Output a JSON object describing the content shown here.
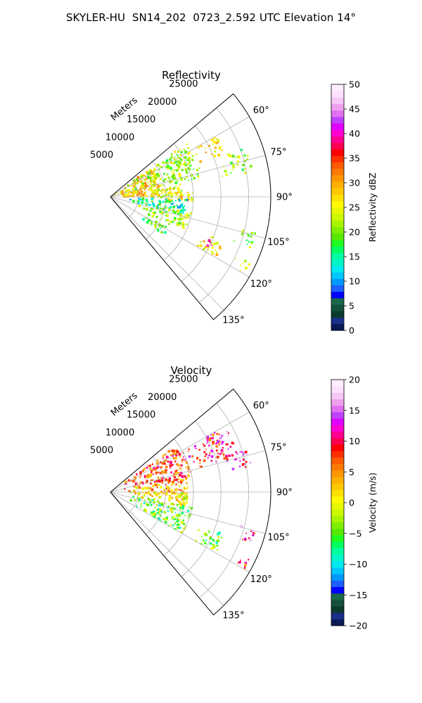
{
  "figure": {
    "title": "SKYLER-HU  SN14_202  0723_2.592 UTC Elevation 14°"
  },
  "chart_data": [
    {
      "type": "heatmap",
      "title": "Reflectivity",
      "radial_axis_label": "Meters",
      "radial_ticks": [
        5000,
        10000,
        15000,
        20000,
        25000
      ],
      "radial_tick_labels": [
        "5000",
        "10000",
        "15000",
        "20000",
        "25000"
      ],
      "range_max_m": 29000,
      "azimuth_range_deg": [
        50,
        140
      ],
      "azimuth_ticks_deg": [
        60,
        75,
        90,
        105,
        120,
        135
      ],
      "azimuth_tick_labels": [
        "60°",
        "75°",
        "90°",
        "105°",
        "120°",
        "135°"
      ],
      "grid": true,
      "colorbar": {
        "label": "Reflectivity dBZ",
        "range": [
          0,
          50
        ],
        "ticks": [
          0,
          5,
          10,
          15,
          20,
          25,
          30,
          35,
          40,
          45,
          50
        ],
        "tick_labels": [
          "0",
          "5",
          "10",
          "15",
          "20",
          "25",
          "30",
          "35",
          "40",
          "45",
          "50"
        ],
        "colors": [
          "#0b1a55",
          "#1a2e8a",
          "#0a3a2c",
          "#14503c",
          "#1a6a4a",
          "#0000ff",
          "#1e60ff",
          "#0099ff",
          "#00c8ff",
          "#00eaf0",
          "#00f5c8",
          "#00ffa0",
          "#00ff60",
          "#20ff20",
          "#58e800",
          "#7fee00",
          "#a8f500",
          "#ccf800",
          "#e8f800",
          "#fffa00",
          "#ffe000",
          "#ffc800",
          "#ffb000",
          "#ff9600",
          "#ff7a00",
          "#ff5a00",
          "#ff3000",
          "#ff0000",
          "#ff0050",
          "#ff0090",
          "#ff00d0",
          "#e000ff",
          "#c040ff",
          "#e070f0",
          "#f0a0f0",
          "#f8c8f8",
          "#fde0fd",
          "#ffeeff"
        ]
      },
      "echoes": [
        {
          "az": [
            55,
            90
          ],
          "r": [
            0,
            9000
          ],
          "value": 28
        },
        {
          "az": [
            55,
            78
          ],
          "r": [
            3000,
            17000
          ],
          "value": 22
        },
        {
          "az": [
            60,
            70
          ],
          "r": [
            17000,
            22000
          ],
          "value": 26
        },
        {
          "az": [
            70,
            80
          ],
          "r": [
            20000,
            26000
          ],
          "value": 22
        },
        {
          "az": [
            80,
            92
          ],
          "r": [
            6000,
            13000
          ],
          "value": 24
        },
        {
          "az": [
            86,
            94
          ],
          "r": [
            9000,
            15000
          ],
          "value": 27
        },
        {
          "az": [
            92,
            104
          ],
          "r": [
            2000,
            14000
          ],
          "value": 14
        },
        {
          "az": [
            100,
            115
          ],
          "r": [
            5000,
            15000
          ],
          "value": 22
        },
        {
          "az": [
            110,
            120
          ],
          "r": [
            17000,
            22000
          ],
          "value": 26
        },
        {
          "az": [
            113,
            117
          ],
          "r": [
            18500,
            20500
          ],
          "value": 38
        },
        {
          "az": [
            103,
            110
          ],
          "r": [
            23000,
            27000
          ],
          "value": 20
        },
        {
          "az": [
            115,
            120
          ],
          "r": [
            25000,
            28000
          ],
          "value": 24
        },
        {
          "az": [
            118,
            126
          ],
          "r": [
            6000,
            12000
          ],
          "value": 20
        }
      ]
    },
    {
      "type": "heatmap",
      "title": "Velocity",
      "radial_axis_label": "Meters",
      "radial_ticks": [
        5000,
        10000,
        15000,
        20000,
        25000
      ],
      "radial_tick_labels": [
        "5000",
        "10000",
        "15000",
        "20000",
        "25000"
      ],
      "range_max_m": 29000,
      "azimuth_range_deg": [
        50,
        140
      ],
      "azimuth_ticks_deg": [
        60,
        75,
        90,
        105,
        120,
        135
      ],
      "azimuth_tick_labels": [
        "60°",
        "75°",
        "90°",
        "105°",
        "120°",
        "135°"
      ],
      "grid": true,
      "colorbar": {
        "label": "Velocity (m/s)",
        "range": [
          -20,
          20
        ],
        "ticks": [
          -20,
          -15,
          -10,
          -5,
          0,
          5,
          10,
          15,
          20
        ],
        "tick_labels": [
          "−20",
          "−15",
          "−10",
          "−5",
          "0",
          "5",
          "10",
          "15",
          "20"
        ],
        "colors": [
          "#0b1a55",
          "#1a2e8a",
          "#0a3a2c",
          "#14503c",
          "#1a6a4a",
          "#0000ff",
          "#1e60ff",
          "#0099ff",
          "#00c8ff",
          "#00eaf0",
          "#00f5c8",
          "#00ffa0",
          "#00ff60",
          "#20ff20",
          "#58e800",
          "#7fee00",
          "#a8f500",
          "#ccf800",
          "#e8f800",
          "#fffa00",
          "#ffe000",
          "#ffc800",
          "#ffb000",
          "#ff9600",
          "#ff7a00",
          "#ff5a00",
          "#ff3000",
          "#ff0000",
          "#ff0050",
          "#ff0090",
          "#ff00d0",
          "#e000ff",
          "#c040ff",
          "#e070f0",
          "#f0a0f0",
          "#f8c8f8",
          "#fde0fd",
          "#ffeeff"
        ]
      },
      "echoes": [
        {
          "az": [
            55,
            80
          ],
          "r": [
            2000,
            15000
          ],
          "value": 7
        },
        {
          "az": [
            60,
            75
          ],
          "r": [
            14000,
            22000
          ],
          "value": 9
        },
        {
          "az": [
            62,
            70
          ],
          "r": [
            18000,
            24000
          ],
          "value": 13
        },
        {
          "az": [
            72,
            80
          ],
          "r": [
            20000,
            26000
          ],
          "value": 13
        },
        {
          "az": [
            80,
            92
          ],
          "r": [
            3000,
            14000
          ],
          "value": 4
        },
        {
          "az": [
            90,
            102
          ],
          "r": [
            2000,
            14000
          ],
          "value": 1
        },
        {
          "az": [
            100,
            120
          ],
          "r": [
            3000,
            15000
          ],
          "value": -5
        },
        {
          "az": [
            110,
            120
          ],
          "r": [
            16000,
            22000
          ],
          "value": -4
        },
        {
          "az": [
            104,
            110
          ],
          "r": [
            23000,
            27000
          ],
          "value": 13
        },
        {
          "az": [
            115,
            120
          ],
          "r": [
            25000,
            28000
          ],
          "value": 9
        }
      ]
    }
  ]
}
